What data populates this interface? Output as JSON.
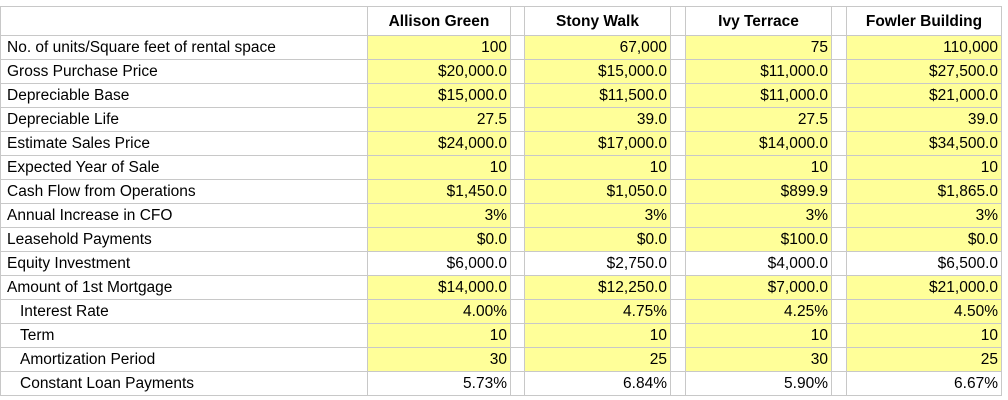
{
  "columns": [
    "Allison Green",
    "Stony Walk",
    "Ivy Terrace",
    "Fowler Building"
  ],
  "rows": [
    {
      "label": "No. of units/Square feet of rental space",
      "indent": false,
      "fill": "yellow",
      "values": [
        "100",
        "67,000",
        "75",
        "110,000"
      ]
    },
    {
      "label": "Gross Purchase Price",
      "indent": false,
      "fill": "yellow",
      "values": [
        "$20,000.0",
        "$15,000.0",
        "$11,000.0",
        "$27,500.0"
      ]
    },
    {
      "label": "Depreciable Base",
      "indent": false,
      "fill": "yellow",
      "values": [
        "$15,000.0",
        "$11,500.0",
        "$11,000.0",
        "$21,000.0"
      ]
    },
    {
      "label": "Depreciable Life",
      "indent": false,
      "fill": "yellow",
      "values": [
        "27.5",
        "39.0",
        "27.5",
        "39.0"
      ]
    },
    {
      "label": "Estimate Sales Price",
      "indent": false,
      "fill": "yellow",
      "values": [
        "$24,000.0",
        "$17,000.0",
        "$14,000.0",
        "$34,500.0"
      ]
    },
    {
      "label": "Expected Year of Sale",
      "indent": false,
      "fill": "yellow",
      "values": [
        "10",
        "10",
        "10",
        "10"
      ]
    },
    {
      "label": "Cash Flow from Operations",
      "indent": false,
      "fill": "yellow",
      "values": [
        "$1,450.0",
        "$1,050.0",
        "$899.9",
        "$1,865.0"
      ]
    },
    {
      "label": "Annual Increase in CFO",
      "indent": false,
      "fill": "yellow",
      "values": [
        "3%",
        "3%",
        "3%",
        "3%"
      ]
    },
    {
      "label": "Leasehold Payments",
      "indent": false,
      "fill": "yellow",
      "values": [
        "$0.0",
        "$0.0",
        "$100.0",
        "$0.0"
      ]
    },
    {
      "label": "Equity Investment",
      "indent": false,
      "fill": "white",
      "values": [
        "$6,000.0",
        "$2,750.0",
        "$4,000.0",
        "$6,500.0"
      ]
    },
    {
      "label": "Amount of 1st Mortgage",
      "indent": false,
      "fill": "yellow",
      "values": [
        "$14,000.0",
        "$12,250.0",
        "$7,000.0",
        "$21,000.0"
      ]
    },
    {
      "label": "Interest Rate",
      "indent": true,
      "fill": "yellow",
      "values": [
        "4.00%",
        "4.75%",
        "4.25%",
        "4.50%"
      ]
    },
    {
      "label": "Term",
      "indent": true,
      "fill": "yellow",
      "values": [
        "10",
        "10",
        "10",
        "10"
      ]
    },
    {
      "label": "Amortization Period",
      "indent": true,
      "fill": "yellow",
      "values": [
        "30",
        "25",
        "30",
        "25"
      ]
    },
    {
      "label": "Constant Loan Payments",
      "indent": true,
      "fill": "white",
      "values": [
        "5.73%",
        "6.84%",
        "5.90%",
        "6.67%"
      ]
    }
  ],
  "colors": {
    "input_fill": "#ffff99",
    "formula_fill": "#ffffff",
    "gridline": "#c8c8c8"
  }
}
